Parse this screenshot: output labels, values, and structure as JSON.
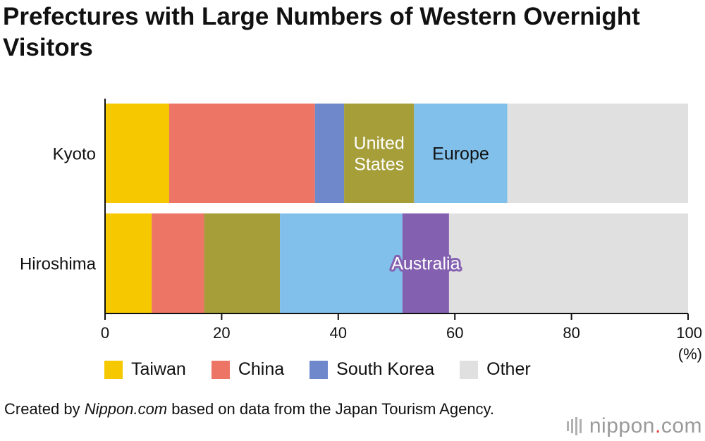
{
  "title": "Prefectures with Large Numbers of Western Overnight Visitors",
  "source": {
    "prefix": "Created by ",
    "site": "Nippon.com",
    "suffix": " based on data from the Japan Tourism Agency."
  },
  "brand": {
    "name": "nippon",
    "dot": ".",
    "tld": "com"
  },
  "colors": {
    "Taiwan": "#f5c800",
    "China": "#ec7565",
    "South Korea": "#6f88cc",
    "United States": "#a59e39",
    "Europe": "#80c0eb",
    "Australia": "#8460b0",
    "Other": "#e0e0e0"
  },
  "chart_data": {
    "type": "bar",
    "orientation": "horizontal",
    "stacked": true,
    "categories": [
      "Kyoto",
      "Hiroshima"
    ],
    "series": [
      {
        "name": "Taiwan",
        "values": [
          11,
          8
        ]
      },
      {
        "name": "China",
        "values": [
          25,
          9
        ]
      },
      {
        "name": "South Korea",
        "values": [
          5,
          0
        ]
      },
      {
        "name": "United States",
        "values": [
          12,
          13
        ]
      },
      {
        "name": "Europe",
        "values": [
          16,
          21
        ]
      },
      {
        "name": "Australia",
        "values": [
          0,
          8
        ]
      },
      {
        "name": "Other",
        "values": [
          31,
          41
        ]
      }
    ],
    "bar_labels": [
      {
        "series": "United States",
        "category": "Kyoto",
        "lines": [
          "United",
          "States"
        ],
        "color": "#ffffff"
      },
      {
        "series": "Europe",
        "category": "Kyoto",
        "lines": [
          "Europe"
        ],
        "color": "#111111"
      },
      {
        "series": "Australia",
        "category": "Hiroshima",
        "lines": [
          "Australia"
        ],
        "color": "#ffffff",
        "outline": "#8460b0"
      }
    ],
    "xlim": [
      0,
      100
    ],
    "xticks": [
      0,
      20,
      40,
      60,
      80,
      100
    ],
    "xunit": "(%)",
    "legend": {
      "placement": "bottom",
      "entries": [
        "Taiwan",
        "China",
        "South Korea",
        "Other"
      ]
    },
    "grid": false
  }
}
